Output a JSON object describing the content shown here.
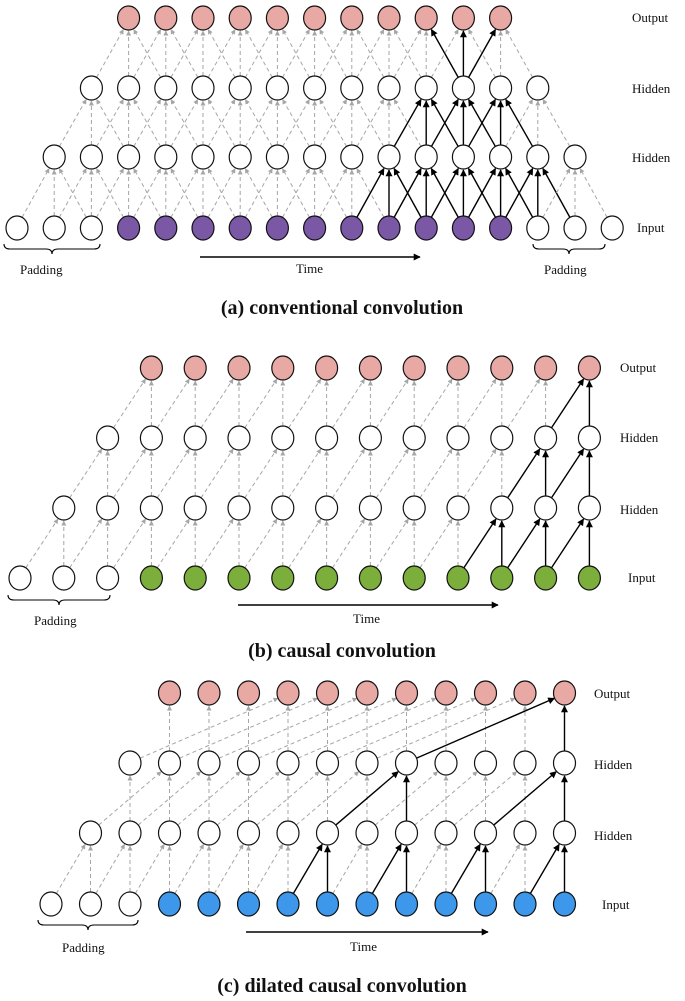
{
  "colors": {
    "output": "#e8a8a4",
    "hidden": "#ffffff",
    "input_a": "#7b58a6",
    "input_b": "#7cae3c",
    "input_c": "#3d98ec",
    "padding": "#ffffff",
    "dashed": "#a6a6a6",
    "solid": "#000000"
  },
  "panels": [
    {
      "id": "a",
      "caption": "(a) conventional convolution",
      "layer_labels": [
        "Output",
        "Hidden",
        "Hidden",
        "Input"
      ],
      "time_label": "Time",
      "padding_labels": [
        "Padding",
        "Padding"
      ],
      "input_fill": "#7b58a6"
    },
    {
      "id": "b",
      "caption": "(b) causal  convolution",
      "layer_labels": [
        "Output",
        "Hidden",
        "Hidden",
        "Input"
      ],
      "time_label": "Time",
      "padding_labels": [
        "Padding"
      ],
      "input_fill": "#7cae3c"
    },
    {
      "id": "c",
      "caption": "(c) dilated causal  convolution",
      "layer_labels": [
        "Output",
        "Hidden",
        "Hidden",
        "Input"
      ],
      "time_label": "Time",
      "padding_labels": [
        "Padding"
      ],
      "input_fill": "#3d98ec"
    }
  ]
}
